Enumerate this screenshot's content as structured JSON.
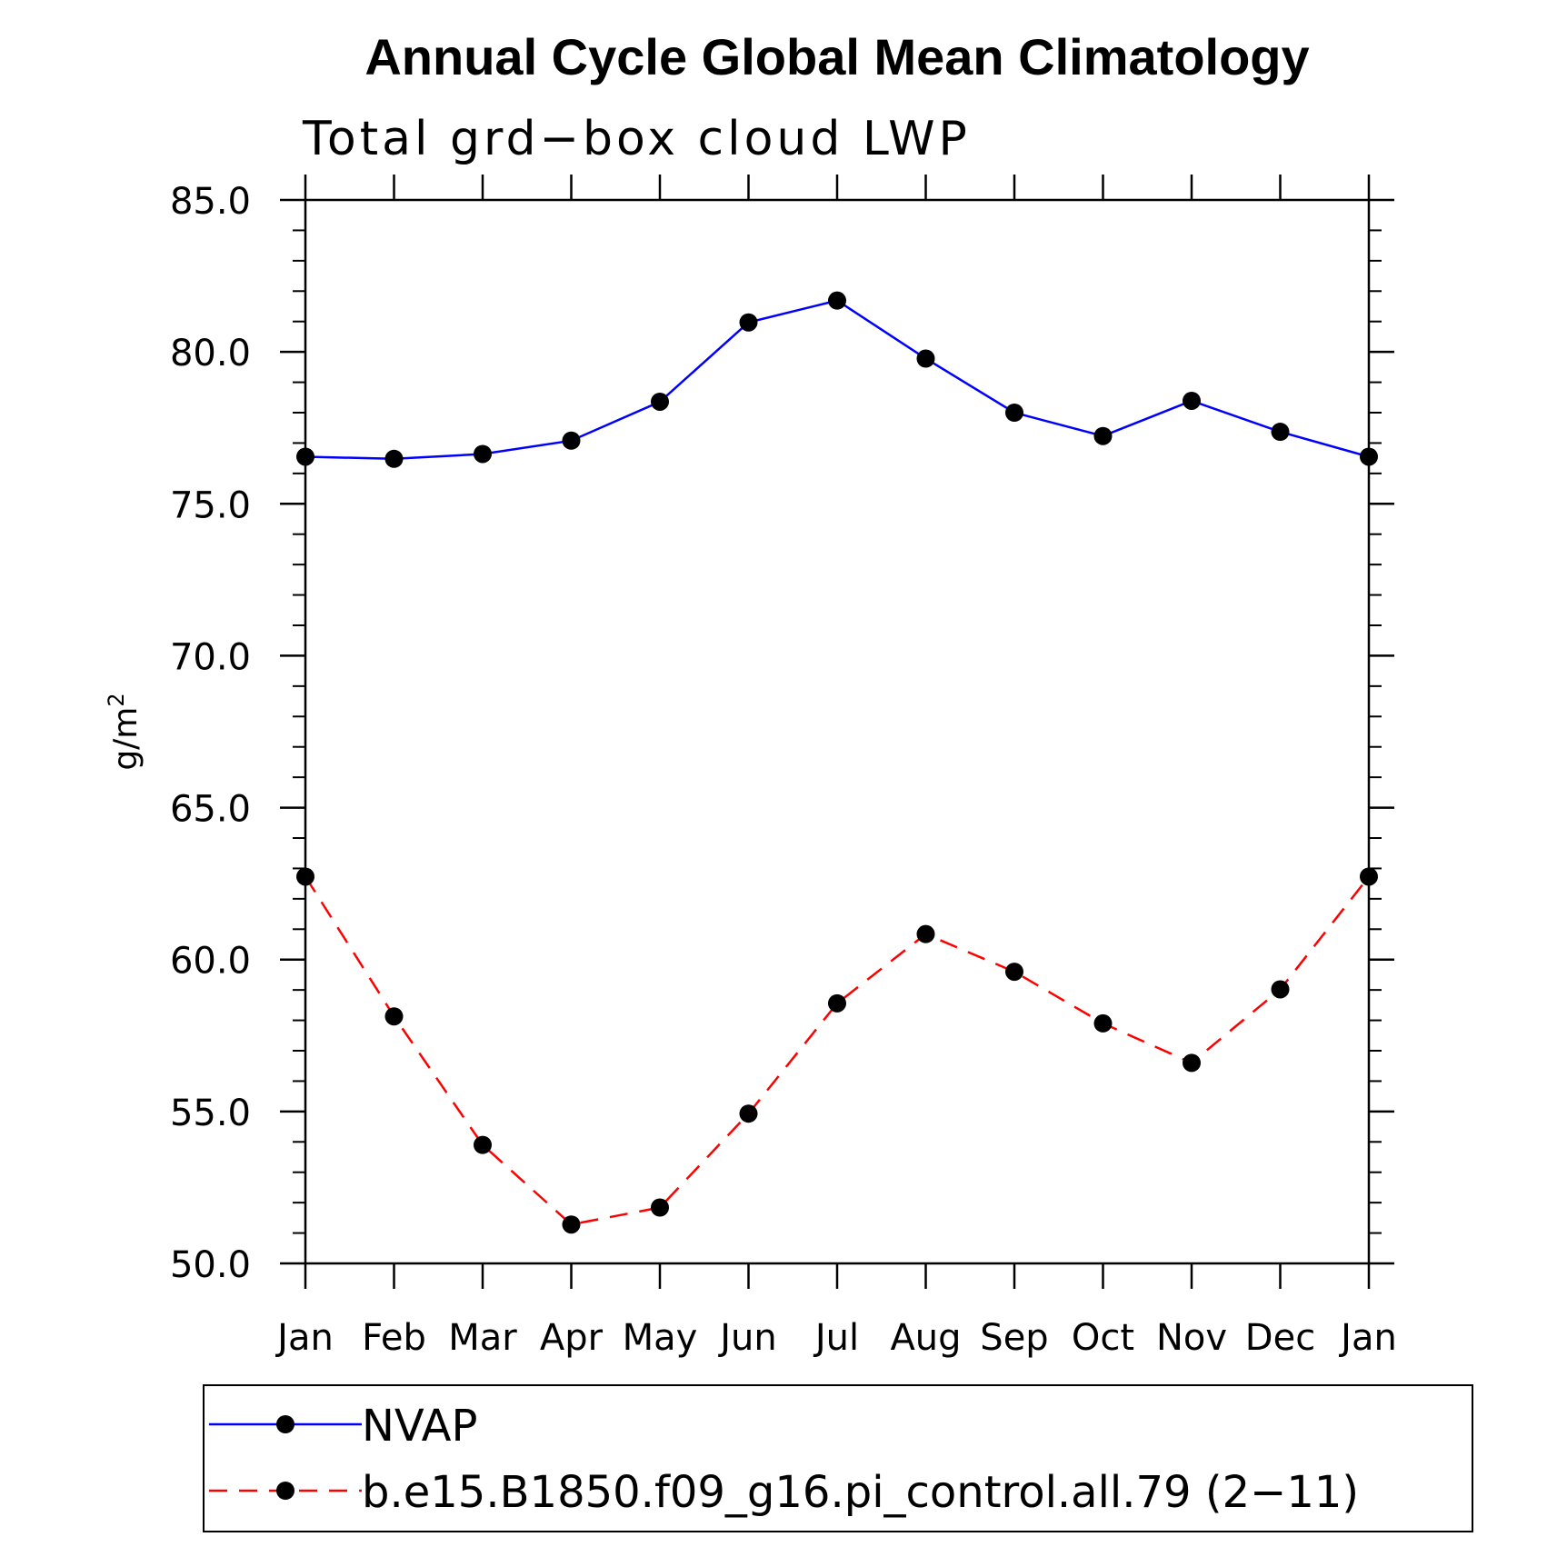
{
  "chart_data": {
    "type": "line",
    "title": "Annual Cycle Global Mean Climatology",
    "subtitle": "Total grd−box cloud LWP",
    "xlabel": "",
    "ylabel": "g/m",
    "ylabel_superscript": "2",
    "categories": [
      "Jan",
      "Feb",
      "Mar",
      "Apr",
      "May",
      "Jun",
      "Jul",
      "Aug",
      "Sep",
      "Oct",
      "Nov",
      "Dec",
      "Jan"
    ],
    "ylim": [
      50.0,
      85.0
    ],
    "yticks": [
      "50.0",
      "55.0",
      "60.0",
      "65.0",
      "70.0",
      "75.0",
      "80.0",
      "85.0"
    ],
    "grid": false,
    "legend_position": "bottom",
    "series": [
      {
        "name": "NVAP",
        "color": "#0000ff",
        "dash": "solid",
        "values": [
          76.55,
          76.48,
          76.64,
          77.08,
          78.36,
          80.97,
          81.69,
          79.78,
          78.0,
          77.23,
          78.39,
          77.37,
          76.55
        ]
      },
      {
        "name": "b.e15.B1850.f09_g16.pi_control.all.79 (2−11)",
        "color": "#ff0000",
        "dash": "dashed",
        "values": [
          62.73,
          58.13,
          53.9,
          51.28,
          51.84,
          54.93,
          58.56,
          60.84,
          59.6,
          57.9,
          56.6,
          59.02,
          62.73
        ]
      }
    ]
  }
}
